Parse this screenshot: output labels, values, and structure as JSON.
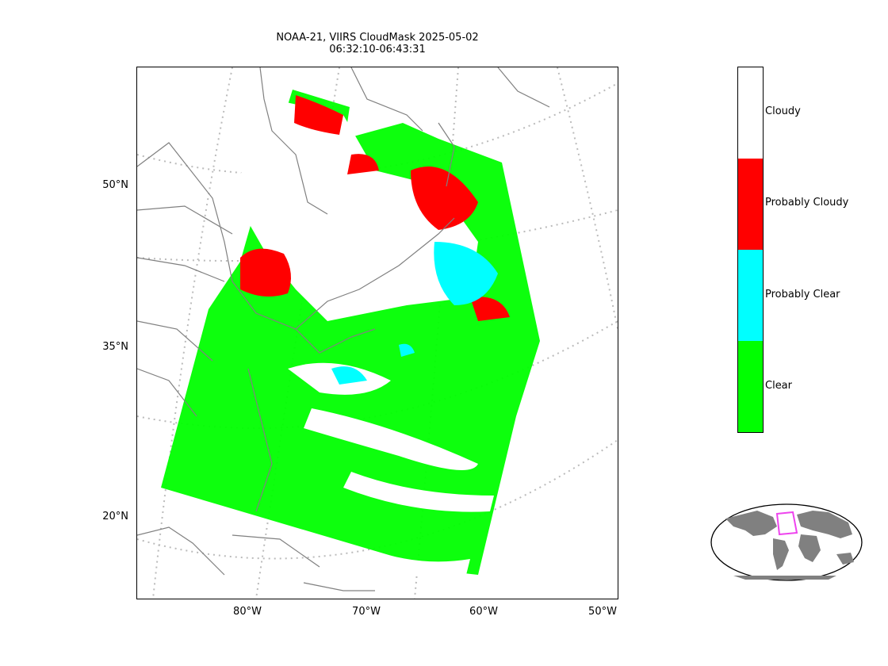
{
  "title_line1": "NOAA-21, VIIRS CloudMask 2025-05-02",
  "title_line2": "06:32:10-06:43:31",
  "lat_labels": [
    "50°N",
    "35°N",
    "20°N"
  ],
  "lon_labels": [
    "80°W",
    "70°W",
    "60°W",
    "50°W"
  ],
  "colorbar": {
    "classes": [
      {
        "label": "Cloudy",
        "color": "#ffffff"
      },
      {
        "label": "Probably Cloudy",
        "color": "#ff0000"
      },
      {
        "label": "Probably Clear",
        "color": "#00ffff"
      },
      {
        "label": "Clear",
        "color": "#00ff00"
      }
    ]
  },
  "colors": {
    "graticule": "#bbbbbb",
    "coastline": "#808080",
    "inset_land": "#808080",
    "inset_box": "#ee44ee"
  }
}
